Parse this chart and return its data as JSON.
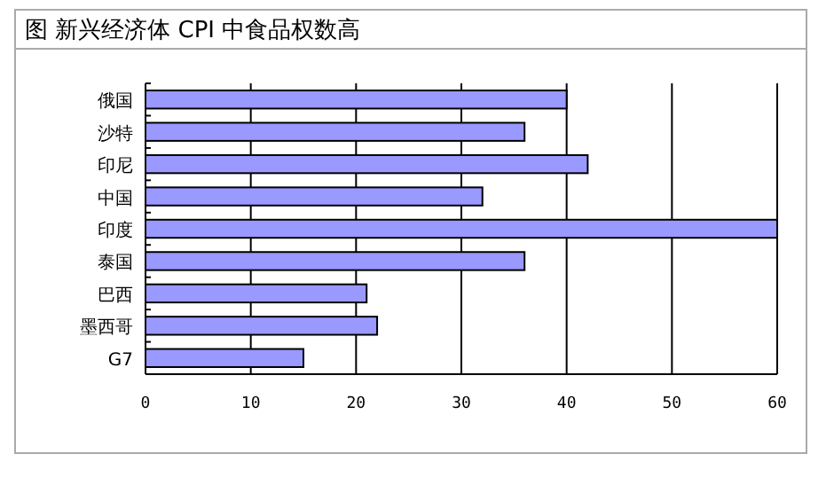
{
  "chart_data": {
    "type": "bar",
    "orientation": "horizontal",
    "title": "图   新兴经济体 CPI 中食品权数高",
    "categories": [
      "俄国",
      "沙特",
      "印尼",
      "中国",
      "印度",
      "泰国",
      "巴西",
      "墨西哥",
      "G7"
    ],
    "values": [
      40,
      36,
      42,
      32,
      60,
      36,
      21,
      22,
      15
    ],
    "color": "#9999ff",
    "xlim": [
      0,
      60
    ],
    "xticks": [
      0,
      10,
      20,
      30,
      40,
      50,
      60
    ],
    "grid": "x"
  }
}
